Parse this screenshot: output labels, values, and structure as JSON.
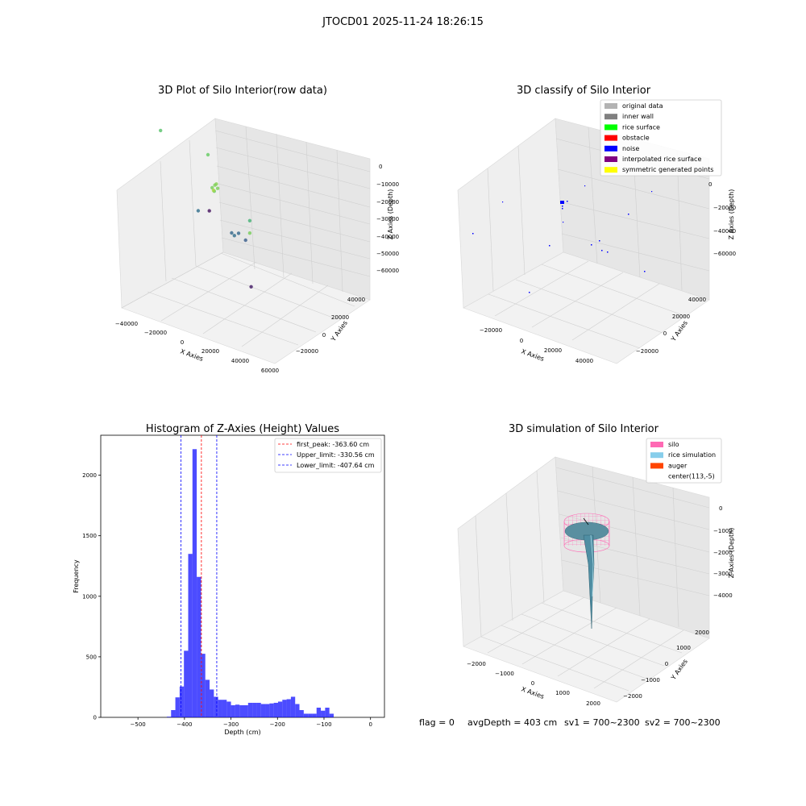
{
  "figure": {
    "suptitle": "JTOCD01 2025-11-24 18:26:15",
    "footer": {
      "flag": "flag = 0",
      "avg_depth": "avgDepth = 403 cm",
      "sv1": "sv1 = 700~2300",
      "sv2": "sv2 = 700~2300"
    }
  },
  "chart_data": [
    {
      "type": "scatter",
      "projection": "3d",
      "title": "3D Plot of Silo Interior(row data)",
      "xlabel": "X Axies",
      "ylabel": "Y Axies",
      "zlabel": "Z Axies (Depth)",
      "x_ticks": [
        "−40000",
        "−20000",
        "0",
        "20000",
        "40000",
        "60000"
      ],
      "y_ticks": [
        "−20000",
        "0",
        "20000",
        "40000"
      ],
      "z_ticks": [
        "−60000",
        "−50000",
        "−40000",
        "−30000",
        "−20000",
        "−10000",
        "0"
      ],
      "xlim": [
        -45000,
        60000
      ],
      "ylim": [
        -28000,
        48000
      ],
      "zlim": [
        -65000,
        5000
      ],
      "colormap": "viridis",
      "points": [
        {
          "x": 20000,
          "y": 25000,
          "z": -8000
        },
        {
          "x": 19000,
          "y": 25000,
          "z": -9000
        },
        {
          "x": 18000,
          "y": 26000,
          "z": -10000
        },
        {
          "x": 21000,
          "y": 25000,
          "z": -9500
        },
        {
          "x": 18500,
          "y": 25000,
          "z": -12000
        },
        {
          "x": 25000,
          "y": 32000,
          "z": -4000
        },
        {
          "x": 52000,
          "y": 33000,
          "z": -10000
        },
        {
          "x": 1000,
          "y": 12000,
          "z": -12000
        },
        {
          "x": 38000,
          "y": 19000,
          "z": -20000
        },
        {
          "x": -31000,
          "y": 14000,
          "z": -15000
        },
        {
          "x": -5000,
          "y": 13000,
          "z": -40000
        },
        {
          "x": 16000,
          "y": 10000,
          "z": -42000
        },
        {
          "x": 20000,
          "y": 12000,
          "z": -40000
        },
        {
          "x": 19000,
          "y": 8000,
          "z": -42000
        },
        {
          "x": 22000,
          "y": 6000,
          "z": -45000
        },
        {
          "x": 30000,
          "y": 10000,
          "z": -60000
        },
        {
          "x": -20000,
          "y": -10000,
          "z": -62000
        }
      ]
    },
    {
      "type": "scatter",
      "projection": "3d",
      "title": "3D classify of Silo Interior",
      "xlabel": "X Axies",
      "ylabel": "Y Axies",
      "zlabel": "Z Axies (Depth)",
      "x_ticks": [
        "−20000",
        "0",
        "20000",
        "40000"
      ],
      "y_ticks": [
        "−20000",
        "0",
        "20000",
        "40000"
      ],
      "z_ticks": [
        "−60000",
        "−40000",
        "−20000",
        "0"
      ],
      "legend": {
        "position": "top-right",
        "entries": [
          {
            "label": "original data",
            "color": "#b3b3b3"
          },
          {
            "label": "inner wall",
            "color": "#808080"
          },
          {
            "label": "rice surface",
            "color": "#00ff00"
          },
          {
            "label": "obstacle",
            "color": "#ff0000"
          },
          {
            "label": "noise",
            "color": "#0000ff"
          },
          {
            "label": "interpolated rice surface",
            "color": "#800080"
          },
          {
            "label": "symmetric generated points",
            "color": "#ffff00"
          }
        ]
      }
    },
    {
      "type": "bar",
      "title": "Histogram of Z-Axies (Height) Values",
      "xlabel": "Depth (cm)",
      "ylabel": "Frequency",
      "xlim": [
        -580,
        30
      ],
      "ylim": [
        0,
        2330
      ],
      "x_ticks": [
        -500,
        -400,
        -300,
        -200,
        -100,
        0
      ],
      "y_ticks": [
        0,
        500,
        1000,
        1500,
        2000
      ],
      "bar_color": "#0000ff",
      "bin_start": -438,
      "bin_width": 9.2,
      "counts": [
        5,
        60,
        165,
        255,
        550,
        1350,
        2215,
        1160,
        525,
        310,
        230,
        170,
        145,
        145,
        130,
        100,
        105,
        100,
        100,
        120,
        120,
        120,
        110,
        110,
        115,
        120,
        130,
        145,
        150,
        170,
        110,
        60,
        30,
        30,
        30,
        80,
        55,
        80,
        30
      ],
      "lines": [
        {
          "label": "first_peak: -363.60 cm",
          "value": -363.6,
          "color": "#ff0000"
        },
        {
          "label": "Upper_limit: -330.56 cm",
          "value": -330.56,
          "color": "#0000ff"
        },
        {
          "label": "Lower_limit: -407.64 cm",
          "value": -407.64,
          "color": "#0000ff"
        }
      ],
      "legend": {
        "position": "top-right"
      }
    },
    {
      "type": "surface",
      "projection": "3d",
      "title": "3D simulation of Silo Interior",
      "xlabel": "X Axies",
      "ylabel": "Y Axies",
      "zlabel": "Z Axies (Depth)",
      "x_ticks": [
        "−2000",
        "−1000",
        "0",
        "1000",
        "2000"
      ],
      "y_ticks": [
        "−2000",
        "−1000",
        "0",
        "1000",
        "2000"
      ],
      "z_ticks": [
        "−4000",
        "−3000",
        "−2000",
        "−1000",
        "0"
      ],
      "legend": {
        "position": "top-right",
        "entries": [
          {
            "label": "silo",
            "color": "#ff69b4"
          },
          {
            "label": "rice simulation",
            "color": "#87ceeb"
          },
          {
            "label": "auger",
            "color": "#ff4500"
          },
          {
            "label": "center(113,-5)",
            "color": "#ffffff"
          }
        ]
      }
    }
  ]
}
